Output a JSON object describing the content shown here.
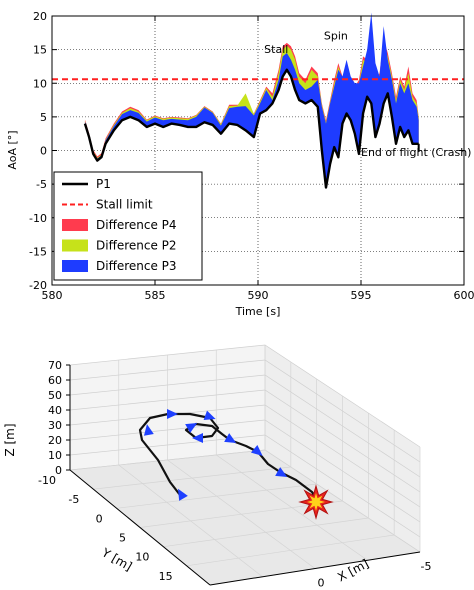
{
  "chart_data": [
    {
      "type": "line",
      "xlabel": "Time [s]",
      "ylabel": "AoA [°]",
      "xlim": [
        580,
        600
      ],
      "ylim": [
        -20,
        20
      ],
      "xticks": [
        580,
        585,
        590,
        595,
        600
      ],
      "yticks": [
        -20,
        -15,
        -10,
        -5,
        0,
        5,
        10,
        15,
        20
      ],
      "grid": true,
      "legend_placement": "lower-left",
      "legend": [
        {
          "label": "P1",
          "kind": "line",
          "color": "#000000"
        },
        {
          "label": "Stall limit",
          "kind": "dashed",
          "color": "#ff2020"
        },
        {
          "label": "Difference P4",
          "kind": "patch",
          "color": "#ff3b4e"
        },
        {
          "label": "Difference P2",
          "kind": "patch",
          "color": "#c6e21a"
        },
        {
          "label": "Difference P3",
          "kind": "patch",
          "color": "#1e3cff"
        }
      ],
      "annotations": [
        {
          "text": "Stall",
          "x": 590.3,
          "y": 14.5
        },
        {
          "text": "Spin",
          "x": 593.2,
          "y": 16.5
        },
        {
          "text": "End of flight (Crash)",
          "x": 595.0,
          "y": -0.8
        }
      ],
      "stall_limit": 10.6,
      "series": [
        {
          "name": "P1",
          "x": [
            581.6,
            581.8,
            582.0,
            582.2,
            582.4,
            582.6,
            583.0,
            583.4,
            583.8,
            584.2,
            584.6,
            585.0,
            585.4,
            585.8,
            586.2,
            586.6,
            587.0,
            587.4,
            587.8,
            588.2,
            588.6,
            589.0,
            589.4,
            589.8,
            590.1,
            590.4,
            590.7,
            591.0,
            591.2,
            591.4,
            591.6,
            591.8,
            592.0,
            592.3,
            592.6,
            592.9,
            593.1,
            593.3,
            593.5,
            593.7,
            593.9,
            594.1,
            594.3,
            594.5,
            594.7,
            594.9,
            595.1,
            595.3,
            595.5,
            595.7,
            595.9,
            596.1,
            596.3,
            596.5,
            596.7,
            596.9,
            597.1,
            597.3,
            597.5,
            597.7,
            597.8
          ],
          "values": [
            4.0,
            2.0,
            -0.5,
            -1.5,
            -1.0,
            1.0,
            3.0,
            4.5,
            5.0,
            4.5,
            3.5,
            4.0,
            3.5,
            4.0,
            3.8,
            3.5,
            3.5,
            4.2,
            3.8,
            2.5,
            4.0,
            3.8,
            3.0,
            2.0,
            5.5,
            6.0,
            7.0,
            9.0,
            11.0,
            12.0,
            11.0,
            9.0,
            7.5,
            7.0,
            7.5,
            6.5,
            0.0,
            -5.5,
            -2.0,
            0.5,
            -1.0,
            4.0,
            5.5,
            4.5,
            2.5,
            -0.5,
            5.5,
            8.0,
            7.0,
            2.0,
            4.0,
            7.0,
            8.5,
            5.0,
            1.0,
            3.5,
            2.0,
            3.0,
            1.0,
            1.0,
            1.0
          ]
        },
        {
          "name": "Difference P4",
          "upper": [
            4.6,
            2.6,
            0.1,
            -0.9,
            -0.4,
            1.8,
            4.0,
            5.8,
            6.5,
            6.0,
            4.6,
            5.2,
            4.8,
            5.0,
            4.9,
            4.8,
            5.3,
            6.6,
            5.8,
            4.0,
            6.8,
            6.8,
            6.8,
            5.5,
            7.5,
            9.5,
            8.5,
            12.0,
            15.5,
            16.0,
            15.5,
            14.0,
            11.5,
            10.5,
            12.5,
            11.5,
            7.0,
            4.5,
            7.5,
            10.5,
            13.0,
            11.0,
            10.5,
            10.0,
            9.5,
            10.5,
            14.0,
            13.5,
            13.0,
            10.5,
            11.5,
            16.5,
            14.5,
            11.5,
            8.0,
            11.0,
            9.5,
            12.5,
            8.5,
            7.5,
            5.0
          ]
        },
        {
          "name": "Difference P2",
          "upper": [
            4.4,
            2.4,
            -0.1,
            -1.1,
            -0.6,
            1.6,
            3.8,
            5.6,
            6.3,
            5.8,
            4.5,
            5.1,
            4.7,
            4.9,
            4.8,
            4.7,
            5.2,
            6.5,
            5.7,
            3.9,
            6.6,
            6.7,
            8.5,
            5.4,
            7.3,
            9.3,
            8.0,
            11.5,
            15.0,
            15.6,
            15.0,
            13.5,
            11.0,
            10.0,
            12.0,
            11.0,
            6.8,
            4.2,
            7.2,
            10.0,
            12.5,
            10.6,
            10.0,
            9.5,
            9.0,
            10.0,
            13.5,
            13.0,
            12.5,
            10.0,
            11.0,
            16.0,
            14.0,
            11.0,
            7.5,
            10.5,
            9.0,
            11.5,
            8.0,
            7.0,
            4.8
          ]
        },
        {
          "name": "Difference P3",
          "upper": [
            4.3,
            2.3,
            -0.2,
            -1.2,
            -0.7,
            1.5,
            3.6,
            5.4,
            6.0,
            5.6,
            4.3,
            4.9,
            4.5,
            4.7,
            4.6,
            4.5,
            5.0,
            6.4,
            5.6,
            3.7,
            6.3,
            6.5,
            6.6,
            5.2,
            7.0,
            9.0,
            7.5,
            10.5,
            14.0,
            14.5,
            13.5,
            12.0,
            10.0,
            9.0,
            9.5,
            10.5,
            6.5,
            4.0,
            7.0,
            9.5,
            12.0,
            11.0,
            13.5,
            11.0,
            10.0,
            10.0,
            12.5,
            15.0,
            20.5,
            13.0,
            11.0,
            18.5,
            13.5,
            10.5,
            7.0,
            10.0,
            8.5,
            10.0,
            7.5,
            6.5,
            4.5
          ]
        }
      ]
    },
    {
      "type": "line3d",
      "xlabel": "X [m]",
      "ylabel": "Y [m]",
      "zlabel": "Z [m]",
      "xlim": [
        -5,
        5
      ],
      "ylim": [
        -10,
        20
      ],
      "zlim": [
        0,
        70
      ],
      "xticks": [
        -5,
        0,
        5
      ],
      "yticks": [
        -10,
        -5,
        0,
        5,
        10,
        15,
        20
      ],
      "zticks": [
        0,
        10,
        20,
        30,
        40,
        50,
        60,
        70
      ],
      "grid": true,
      "crash_marker": {
        "x": 0.6,
        "y": 5.0,
        "z": 0
      }
    }
  ]
}
